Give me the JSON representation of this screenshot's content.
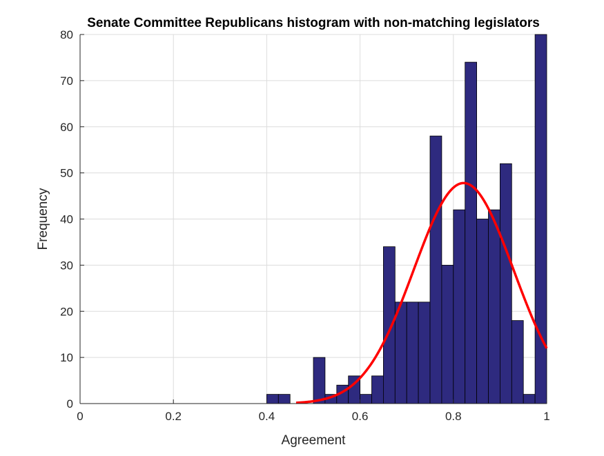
{
  "chart_data": {
    "type": "bar",
    "title": "Senate Committee Republicans histogram with non-matching legislators",
    "xlabel": "Agreement",
    "ylabel": "Frequency",
    "xlim": [
      0,
      1
    ],
    "ylim": [
      0,
      80
    ],
    "grid": true,
    "x_ticks": [
      0,
      0.2,
      0.4,
      0.6,
      0.8,
      1
    ],
    "x_tick_labels": [
      "0",
      "0.2",
      "0.4",
      "0.6",
      "0.8",
      "1"
    ],
    "y_ticks": [
      0,
      10,
      20,
      30,
      40,
      50,
      60,
      70,
      80
    ],
    "y_tick_labels": [
      "0",
      "10",
      "20",
      "30",
      "40",
      "50",
      "60",
      "70",
      "80"
    ],
    "bin_width": 0.025,
    "bins": [
      {
        "x0": 0.4,
        "x1": 0.425,
        "value": 2
      },
      {
        "x0": 0.425,
        "x1": 0.45,
        "value": 2
      },
      {
        "x0": 0.5,
        "x1": 0.525,
        "value": 10
      },
      {
        "x0": 0.525,
        "x1": 0.55,
        "value": 2
      },
      {
        "x0": 0.55,
        "x1": 0.575,
        "value": 4
      },
      {
        "x0": 0.575,
        "x1": 0.6,
        "value": 6
      },
      {
        "x0": 0.6,
        "x1": 0.625,
        "value": 2
      },
      {
        "x0": 0.625,
        "x1": 0.65,
        "value": 6
      },
      {
        "x0": 0.65,
        "x1": 0.675,
        "value": 34
      },
      {
        "x0": 0.675,
        "x1": 0.7,
        "value": 22
      },
      {
        "x0": 0.7,
        "x1": 0.725,
        "value": 22
      },
      {
        "x0": 0.725,
        "x1": 0.75,
        "value": 22
      },
      {
        "x0": 0.75,
        "x1": 0.775,
        "value": 58
      },
      {
        "x0": 0.775,
        "x1": 0.8,
        "value": 30
      },
      {
        "x0": 0.8,
        "x1": 0.825,
        "value": 42
      },
      {
        "x0": 0.825,
        "x1": 0.85,
        "value": 74
      },
      {
        "x0": 0.85,
        "x1": 0.875,
        "value": 40
      },
      {
        "x0": 0.875,
        "x1": 0.9,
        "value": 42
      },
      {
        "x0": 0.9,
        "x1": 0.925,
        "value": 52
      },
      {
        "x0": 0.925,
        "x1": 0.95,
        "value": 18
      },
      {
        "x0": 0.95,
        "x1": 0.975,
        "value": 2
      },
      {
        "x0": 0.975,
        "x1": 1.0,
        "value": 80
      }
    ],
    "fit_curve": {
      "type": "normal",
      "mean": 0.822,
      "peak": 47.8,
      "sd": 0.107,
      "x_start": 0.463,
      "x_end": 1.0
    },
    "colors": {
      "bar_fill": "#2e2a7f",
      "bar_edge": "#000000",
      "curve": "#ff0000",
      "grid": "#dcdcdc",
      "axis": "#262626"
    }
  }
}
